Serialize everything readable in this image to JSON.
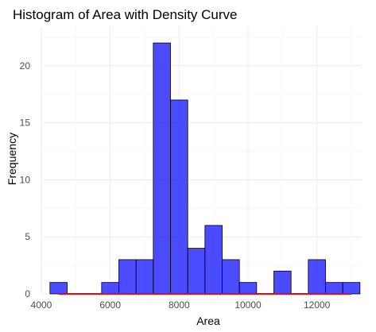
{
  "chart_data": {
    "type": "bar",
    "title": "Histogram of Area with Density Curve",
    "xlabel": "Area",
    "ylabel": "Frequency",
    "xlim": [
      4000,
      13300
    ],
    "ylim": [
      0,
      23.4
    ],
    "x_ticks": [
      4000,
      6000,
      8000,
      10000,
      12000
    ],
    "y_ticks": [
      0,
      5,
      10,
      15,
      20
    ],
    "grid": true,
    "bin_width": 500,
    "bins": [
      {
        "x0": 4250,
        "x1": 4750,
        "count": 1
      },
      {
        "x0": 4750,
        "x1": 5250,
        "count": 0
      },
      {
        "x0": 5250,
        "x1": 5750,
        "count": 0
      },
      {
        "x0": 5750,
        "x1": 6250,
        "count": 1
      },
      {
        "x0": 6250,
        "x1": 6750,
        "count": 3
      },
      {
        "x0": 6750,
        "x1": 7250,
        "count": 3
      },
      {
        "x0": 7250,
        "x1": 7750,
        "count": 22
      },
      {
        "x0": 7750,
        "x1": 8250,
        "count": 17
      },
      {
        "x0": 8250,
        "x1": 8750,
        "count": 4
      },
      {
        "x0": 8750,
        "x1": 9250,
        "count": 6
      },
      {
        "x0": 9250,
        "x1": 9750,
        "count": 3
      },
      {
        "x0": 9750,
        "x1": 10250,
        "count": 1
      },
      {
        "x0": 10250,
        "x1": 10750,
        "count": 0
      },
      {
        "x0": 10750,
        "x1": 11250,
        "count": 2
      },
      {
        "x0": 11250,
        "x1": 11750,
        "count": 0
      },
      {
        "x0": 11750,
        "x1": 12250,
        "count": 3
      },
      {
        "x0": 12250,
        "x1": 12750,
        "count": 1
      },
      {
        "x0": 12750,
        "x1": 13250,
        "count": 1
      }
    ],
    "density_curve": {
      "x": [
        4500,
        13000
      ],
      "y": [
        0,
        0
      ]
    },
    "colors": {
      "bar_fill": "#0000ff",
      "bar_opacity": 0.7,
      "bar_outline": "#000000",
      "density_line": "#ff0000",
      "grid_major": "#ebebeb",
      "grid_minor": "#f5f5f5"
    }
  }
}
